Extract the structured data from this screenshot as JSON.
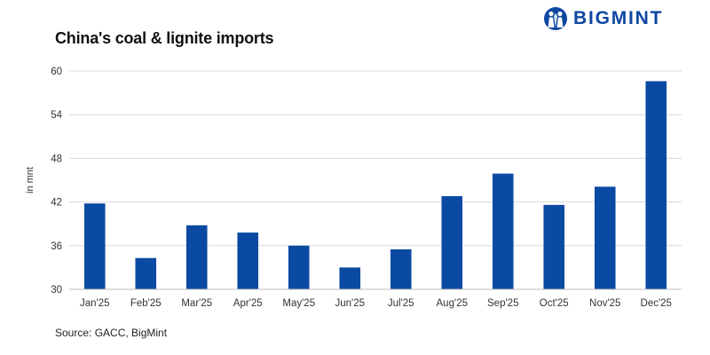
{
  "header": {
    "title": "China's coal & lignite imports"
  },
  "logo": {
    "text": "BIGMINT",
    "icon": "bigmint-people-icon",
    "color": "#0d47a1"
  },
  "footer": {
    "source": "Source: GACC, BigMint"
  },
  "chart_data": {
    "type": "bar",
    "title": "China's coal & lignite imports",
    "xlabel": "",
    "ylabel": "in mnt",
    "categories": [
      "Jan'25",
      "Feb'25",
      "Mar'25",
      "Apr'25",
      "May'25",
      "Jun'25",
      "Jul'25",
      "Aug'25",
      "Sep'25",
      "Oct'25",
      "Nov'25",
      "Dec'25"
    ],
    "values": [
      41.8,
      34.3,
      38.8,
      37.8,
      36.0,
      33.0,
      35.5,
      42.8,
      45.9,
      41.6,
      44.1,
      58.6
    ],
    "ylim": [
      30,
      60
    ],
    "yticks": [
      30,
      36,
      42,
      48,
      54,
      60
    ],
    "grid": true,
    "bar_color": "#0b4aa2"
  }
}
